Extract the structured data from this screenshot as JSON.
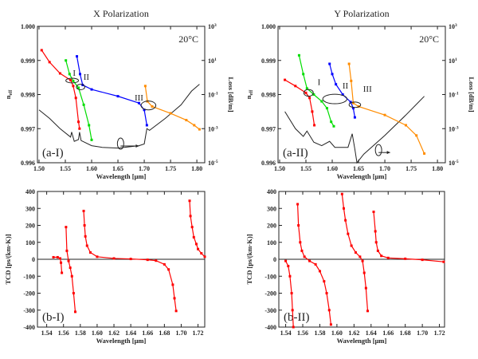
{
  "chart_data": [
    {
      "id": "a-I",
      "type": "line",
      "title": "X Polarization",
      "temperature_label": "20°C",
      "panel_label": "(a-I)",
      "xlabel": "Wavelength [μm]",
      "ylabel": "n_eff",
      "y2label": "Loss [dB/m]",
      "xlim": [
        1.497,
        1.815
      ],
      "ylim": [
        0.996,
        1.0
      ],
      "xticks": [
        1.5,
        1.55,
        1.6,
        1.65,
        1.7,
        1.75,
        1.8
      ],
      "yticks": [
        0.996,
        0.997,
        0.998,
        0.999,
        1.0
      ],
      "y2_scale": "log",
      "y2lim": [
        1e-05,
        1000.0
      ],
      "y2ticks_exp": [
        -5,
        -3,
        -1,
        1,
        3
      ],
      "region_labels": [
        "I",
        "II",
        "III"
      ],
      "series": [
        {
          "color": "#ff0000",
          "x": [
            1.505,
            1.52,
            1.54,
            1.56,
            1.565,
            1.57,
            1.575,
            1.577
          ],
          "y": [
            0.9993,
            0.99895,
            0.99862,
            0.99842,
            0.99825,
            0.9979,
            0.9972,
            0.997
          ]
        },
        {
          "color": "#00dd00",
          "x": [
            1.551,
            1.558,
            1.565,
            1.575,
            1.585,
            1.595,
            1.6
          ],
          "y": [
            0.999,
            0.9986,
            0.9984,
            0.9982,
            0.9977,
            0.9971,
            0.99667
          ]
        },
        {
          "color": "#0000ff",
          "x": [
            1.572,
            1.578,
            1.583,
            1.6,
            1.65,
            1.69,
            1.7,
            1.705
          ],
          "y": [
            0.99912,
            0.9986,
            0.99828,
            0.99815,
            0.99795,
            0.99775,
            0.99755,
            0.9971
          ]
        },
        {
          "color": "#ff8c00",
          "x": [
            1.702,
            1.706,
            1.715,
            1.75,
            1.78,
            1.795,
            1.805
          ],
          "y": [
            0.99825,
            0.9978,
            0.99765,
            0.99745,
            0.99725,
            0.9971,
            0.99698
          ]
        }
      ],
      "loss_series": {
        "color": "#222222",
        "x": [
          1.5,
          1.52,
          1.54,
          1.56,
          1.562,
          1.567,
          1.575,
          1.577,
          1.58,
          1.6,
          1.62,
          1.65,
          1.69,
          1.7,
          1.705,
          1.71,
          1.74,
          1.77,
          1.79,
          1.805
        ],
        "y": [
          0.0126,
          0.004,
          0.001,
          0.00032,
          0.00063,
          0.00018,
          0.00023,
          0.00063,
          0.0002,
          0.0001,
          8e-05,
          7.2e-05,
          0.0001,
          0.000126,
          0.001,
          0.00079,
          0.004,
          0.025,
          0.16,
          0.4
        ]
      }
    },
    {
      "id": "a-II",
      "type": "line",
      "title": "Y Polarization",
      "temperature_label": "20°C",
      "panel_label": "(a-II)",
      "xlabel": "Wavelength [μm]",
      "ylabel": "n_eff",
      "y2label": "Loss [dB/m]",
      "xlim": [
        1.497,
        1.815
      ],
      "ylim": [
        0.996,
        1.0
      ],
      "xticks": [
        1.5,
        1.55,
        1.6,
        1.65,
        1.7,
        1.75,
        1.8
      ],
      "yticks": [
        0.996,
        0.997,
        0.998,
        0.999,
        1.0
      ],
      "y2_scale": "log",
      "y2lim": [
        1e-05,
        1000.0
      ],
      "y2ticks_exp": [
        -5,
        -3,
        -1,
        1,
        3
      ],
      "region_labels": [
        "I",
        "II",
        "III"
      ],
      "series": [
        {
          "color": "#ff0000",
          "x": [
            1.51,
            1.53,
            1.55,
            1.557,
            1.562,
            1.566
          ],
          "y": [
            0.99843,
            0.99825,
            0.99805,
            0.9979,
            0.9975,
            0.9971
          ]
        },
        {
          "color": "#00dd00",
          "x": [
            1.537,
            1.545,
            1.552,
            1.565,
            1.58,
            1.59,
            1.598,
            1.603
          ],
          "y": [
            0.99915,
            0.9986,
            0.99818,
            0.998,
            0.9978,
            0.9976,
            0.9972,
            0.99707
          ]
        },
        {
          "color": "#0000ff",
          "x": [
            1.595,
            1.6,
            1.607,
            1.62,
            1.635,
            1.64,
            1.643
          ],
          "y": [
            0.9989,
            0.9986,
            0.9983,
            0.998,
            0.99778,
            0.9976,
            0.99733
          ]
        },
        {
          "color": "#ff8c00",
          "x": [
            1.632,
            1.636,
            1.64,
            1.65,
            1.7,
            1.74,
            1.76,
            1.775
          ],
          "y": [
            0.9989,
            0.9984,
            0.99775,
            0.99765,
            0.9974,
            0.9971,
            0.9968,
            0.99627
          ]
        }
      ],
      "loss_series": {
        "color": "#222222",
        "x": [
          1.51,
          1.53,
          1.545,
          1.552,
          1.565,
          1.58,
          1.595,
          1.605,
          1.63,
          1.638,
          1.643,
          1.647,
          1.66,
          1.7,
          1.74,
          1.775
        ],
        "y": [
          0.01,
          0.001,
          0.00035,
          0.00072,
          0.00016,
          0.0001,
          0.00018,
          8e-05,
          8e-05,
          0.0005,
          6.3e-05,
          1e-05,
          3.2e-05,
          0.0004,
          0.0063,
          0.079
        ]
      }
    },
    {
      "id": "b-I",
      "type": "line",
      "panel_label": "(b-I)",
      "xlabel": "Wavelength [μm]",
      "ylabel": "TCD [ps/(km·K)]",
      "xlim": [
        1.529,
        1.728
      ],
      "ylim": [
        -400,
        400
      ],
      "xticks": [
        1.54,
        1.56,
        1.58,
        1.6,
        1.62,
        1.64,
        1.66,
        1.68,
        1.7,
        1.72
      ],
      "yticks": [
        -400,
        -300,
        -200,
        -100,
        0,
        100,
        200,
        300,
        400
      ],
      "zero_line": true,
      "series": [
        {
          "color": "#ff0000",
          "x": [
            1.548,
            1.553,
            1.556,
            1.557,
            1.558
          ],
          "y": [
            12,
            12,
            5,
            -20,
            -80
          ]
        },
        {
          "color": "#ff0000",
          "x": [
            1.563,
            1.564,
            1.566,
            1.568,
            1.57,
            1.572,
            1.574
          ],
          "y": [
            190,
            50,
            -10,
            -50,
            -100,
            -200,
            -310
          ]
        },
        {
          "color": "#ff0000",
          "x": [
            1.584,
            1.585,
            1.586,
            1.588,
            1.592,
            1.6,
            1.62,
            1.64,
            1.66,
            1.67,
            1.68,
            1.685,
            1.69,
            1.692,
            1.694
          ],
          "y": [
            285,
            200,
            135,
            80,
            40,
            15,
            5,
            2,
            -3,
            -8,
            -30,
            -60,
            -150,
            -230,
            -305
          ]
        },
        {
          "color": "#ff0000",
          "x": [
            1.71,
            1.711,
            1.713,
            1.715,
            1.718,
            1.72,
            1.724,
            1.728
          ],
          "y": [
            345,
            255,
            190,
            130,
            90,
            60,
            35,
            15
          ]
        }
      ]
    },
    {
      "id": "b-II",
      "type": "line",
      "panel_label": "(b-II)",
      "xlabel": "Wavelength [μm]",
      "ylabel": "TCD [ps/(km·K)]",
      "xlim": [
        1.532,
        1.726
      ],
      "ylim": [
        -400,
        400
      ],
      "xticks": [
        1.54,
        1.56,
        1.58,
        1.6,
        1.62,
        1.64,
        1.66,
        1.68,
        1.7,
        1.72
      ],
      "yticks": [
        -400,
        -300,
        -200,
        -100,
        0,
        100,
        200,
        300,
        400
      ],
      "zero_line": true,
      "series": [
        {
          "color": "#ff0000",
          "x": [
            1.54,
            1.543,
            1.545,
            1.547,
            1.548,
            1.549
          ],
          "y": [
            -10,
            -40,
            -100,
            -200,
            -300,
            -400
          ]
        },
        {
          "color": "#ff0000",
          "x": [
            1.554,
            1.555,
            1.557,
            1.559,
            1.562,
            1.568,
            1.575,
            1.58,
            1.585,
            1.588,
            1.591,
            1.593
          ],
          "y": [
            325,
            200,
            100,
            50,
            15,
            -10,
            -30,
            -70,
            -130,
            -200,
            -300,
            -385
          ]
        },
        {
          "color": "#ff0000",
          "x": [
            1.606,
            1.608,
            1.61,
            1.613,
            1.617,
            1.622,
            1.627,
            1.63,
            1.632,
            1.634,
            1.636
          ],
          "y": [
            385,
            300,
            230,
            150,
            80,
            40,
            15,
            -10,
            -80,
            -170,
            -305
          ]
        },
        {
          "color": "#ff0000",
          "x": [
            1.643,
            1.645,
            1.646,
            1.648,
            1.652,
            1.66,
            1.68,
            1.7,
            1.725
          ],
          "y": [
            280,
            165,
            100,
            50,
            20,
            8,
            3,
            -3,
            -15
          ]
        }
      ]
    }
  ]
}
